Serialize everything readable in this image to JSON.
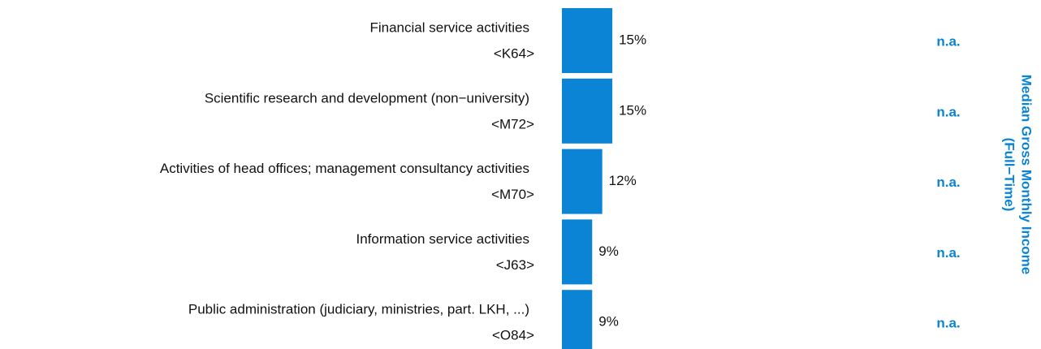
{
  "chart_data": {
    "type": "bar",
    "orientation": "horizontal",
    "categories": [
      "Financial service activities",
      "Scientific research and development (non−university)",
      "Activities of head offices; management consultancy activities",
      "Information service activities",
      "Public administration (judiciary, ministries, part. LKH, ...)"
    ],
    "codes": [
      "<K64>",
      "<M72>",
      "<M70>",
      "<J63>",
      "<O84>"
    ],
    "values": [
      15,
      15,
      12,
      9,
      9
    ],
    "value_labels": [
      "15%",
      "15%",
      "12%",
      "9%",
      "9%"
    ],
    "color": "#0b84d5",
    "income_labels": [
      "n.a.",
      "n.a.",
      "n.a.",
      "n.a.",
      "n.a."
    ],
    "income_title": [
      "Median Gross Monthly Income",
      "(Full−Time)"
    ]
  }
}
